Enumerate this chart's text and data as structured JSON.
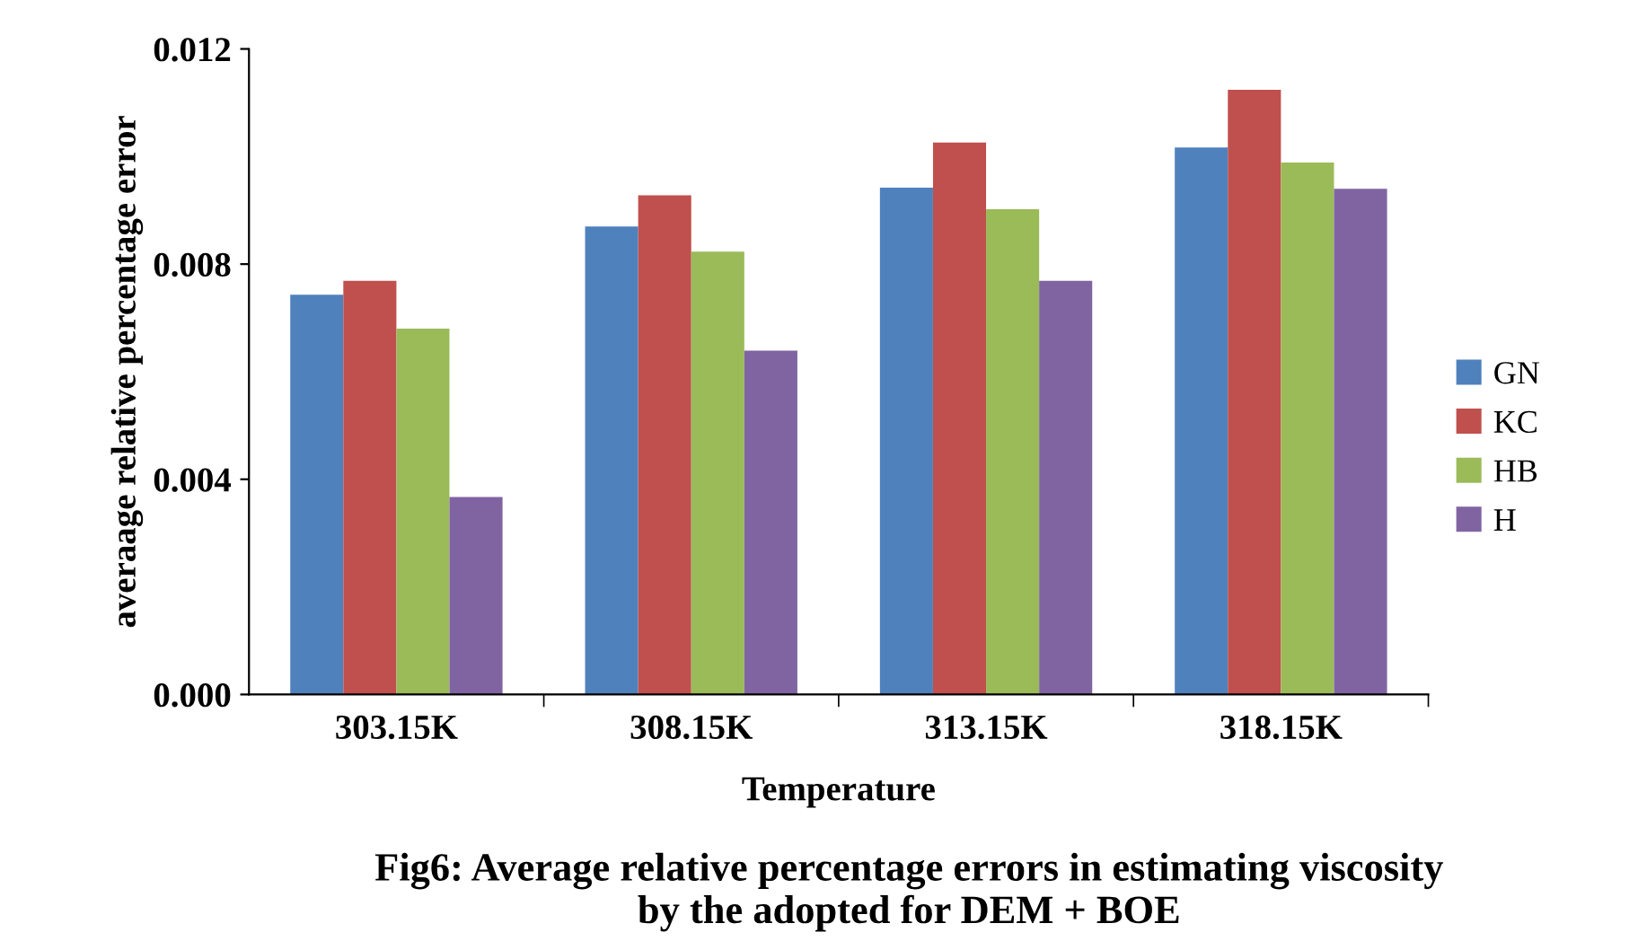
{
  "chart_data": {
    "type": "bar",
    "xlabel": "Temperature",
    "ylabel": "averaage relative percentage error",
    "categories": [
      "303.15K",
      "308.15K",
      "313.15K",
      "318.15K"
    ],
    "series": [
      {
        "name": "GN",
        "color": "#4f81bd",
        "values": [
          0.00743,
          0.0087,
          0.00942,
          0.01017
        ]
      },
      {
        "name": "KC",
        "color": "#c0504d",
        "values": [
          0.00769,
          0.00928,
          0.01026,
          0.01124
        ]
      },
      {
        "name": "HB",
        "color": "#9bbb59",
        "values": [
          0.0068,
          0.00823,
          0.00902,
          0.00989
        ]
      },
      {
        "name": "H",
        "color": "#8064a2",
        "values": [
          0.00367,
          0.00639,
          0.00769,
          0.0094
        ]
      }
    ],
    "ylim": [
      0,
      0.012
    ],
    "yticks": [
      {
        "value": 0,
        "label": "0.000"
      },
      {
        "value": 0.004,
        "label": "0.004"
      },
      {
        "value": 0.008,
        "label": "0.008"
      },
      {
        "value": 0.012,
        "label": "0.012"
      }
    ],
    "grid": false,
    "legend": "right",
    "annotations": [
      "Fig6: Average relative percentage errors in estimating viscosity\nby the adopted for DEM + BOE"
    ]
  }
}
